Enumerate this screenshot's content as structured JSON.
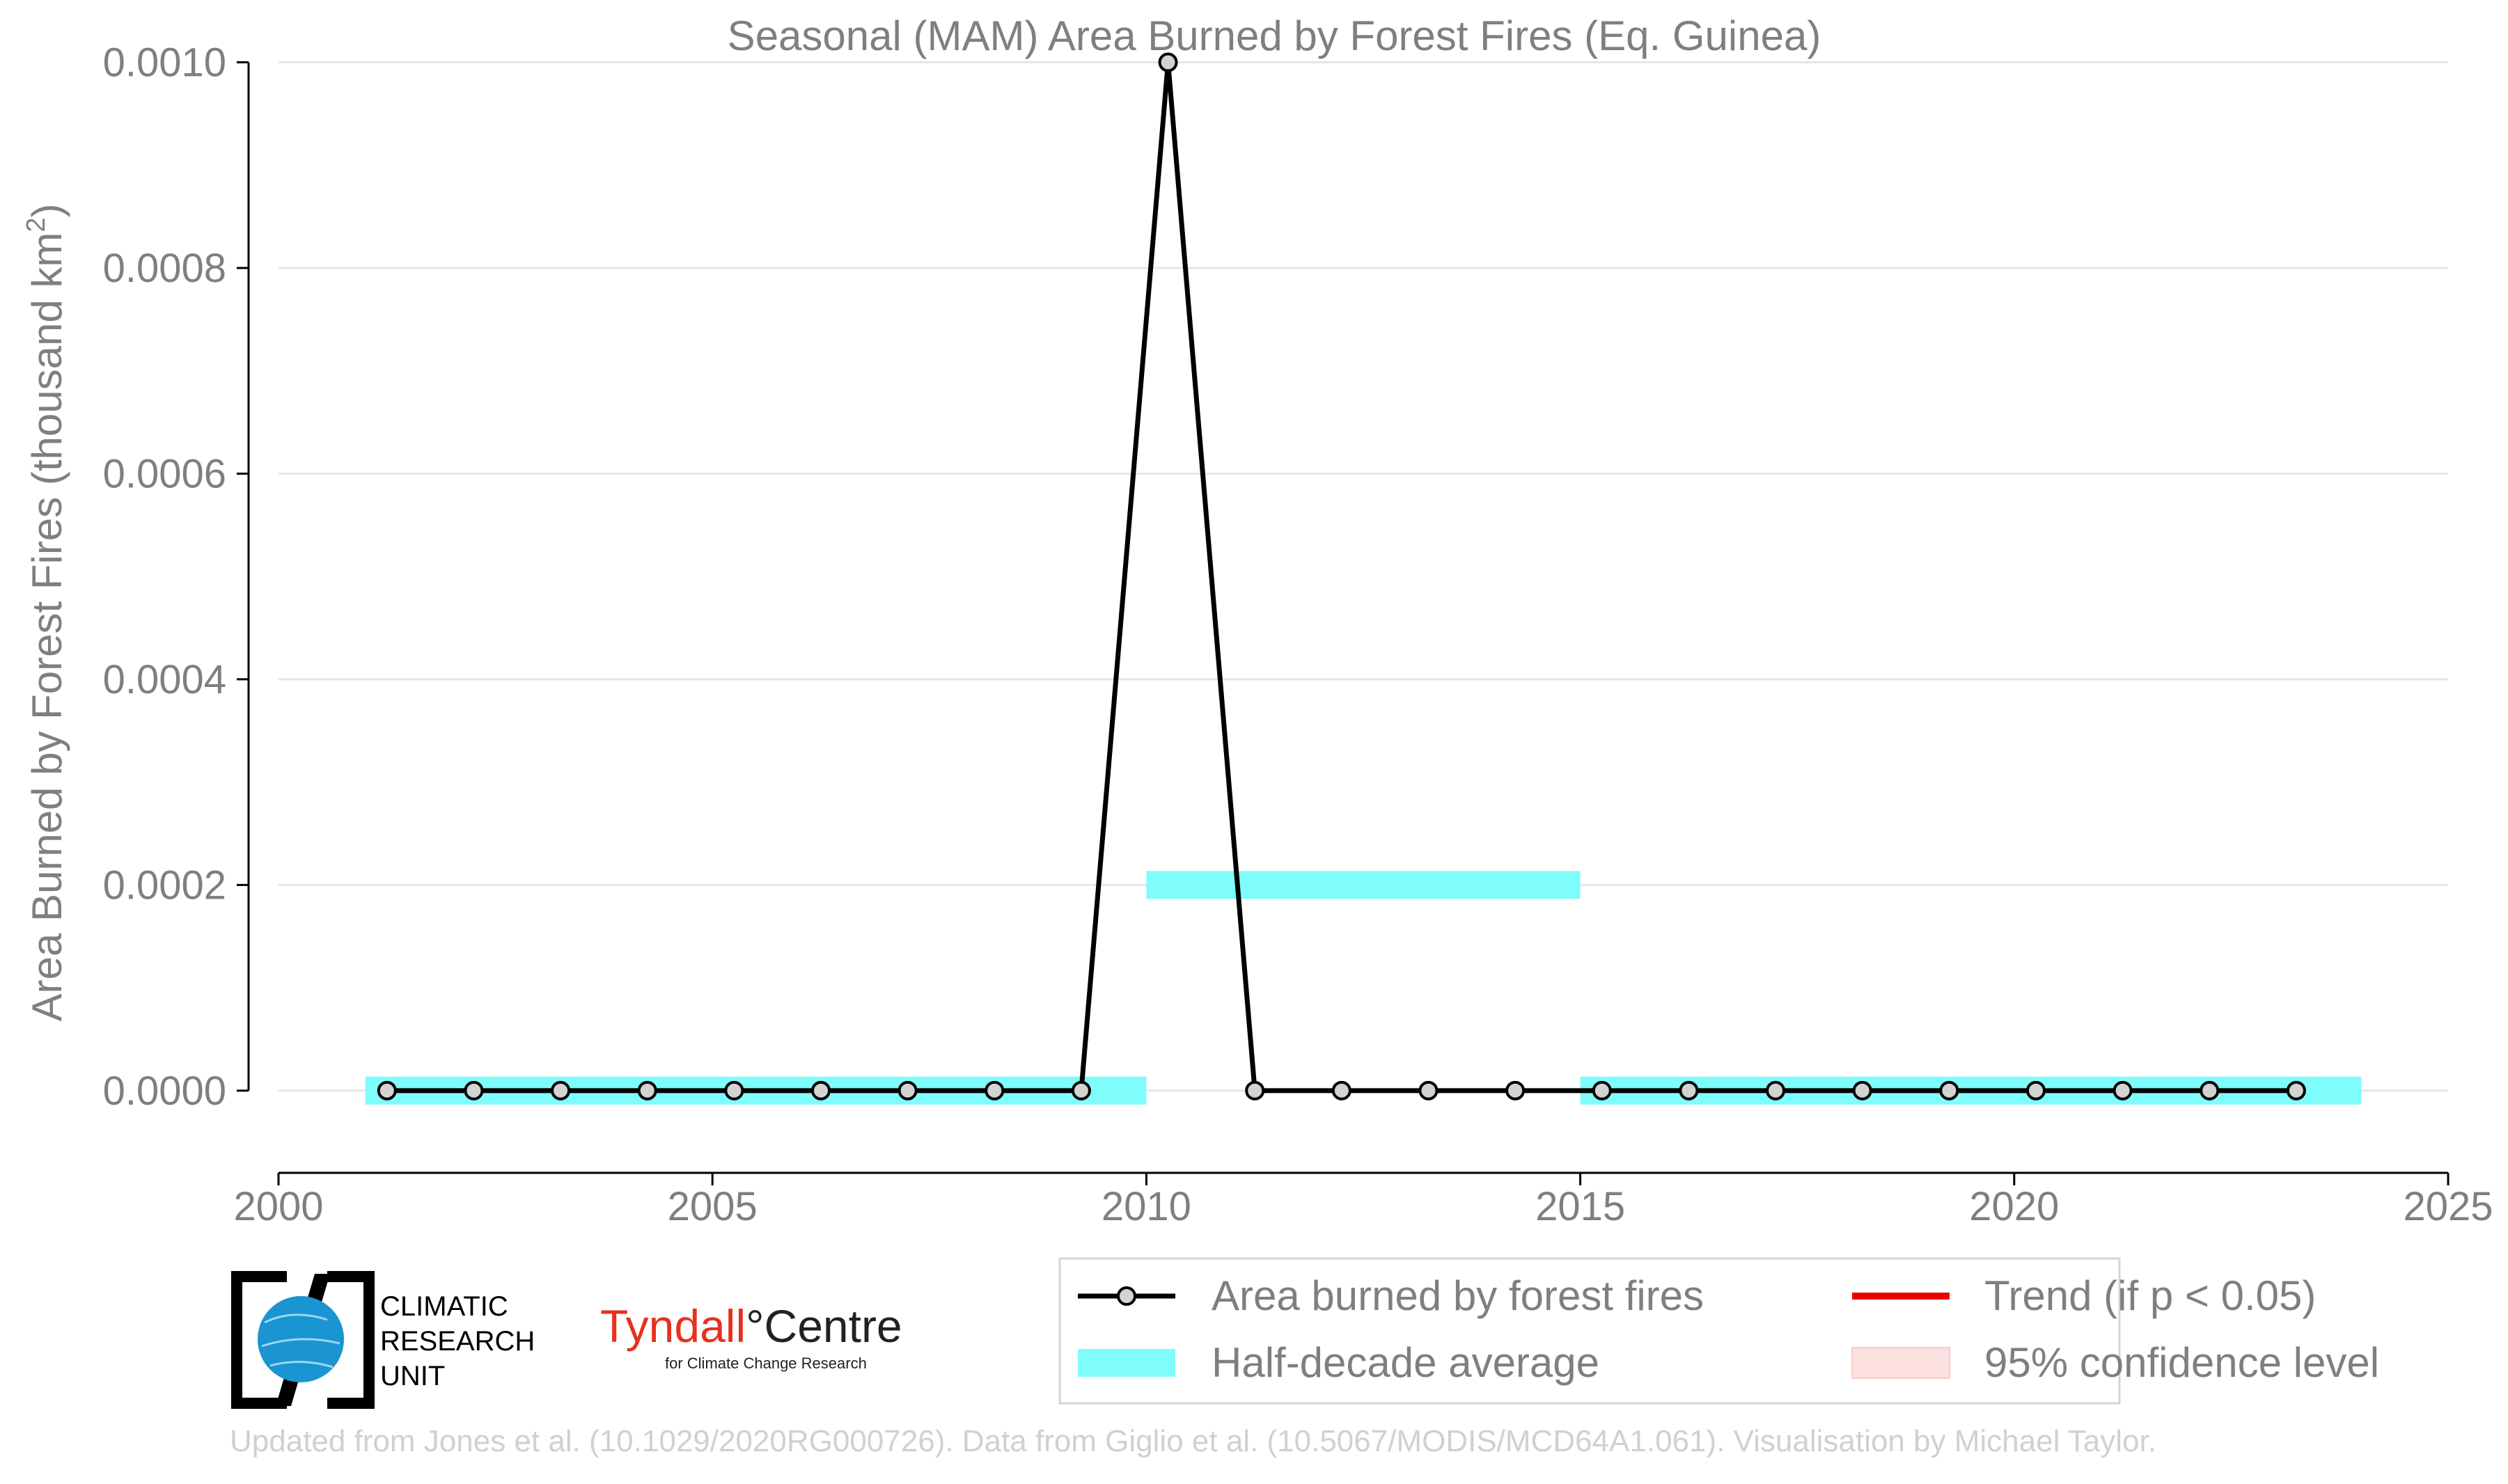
{
  "chart_data": {
    "type": "line",
    "title": "Seasonal (MAM) Area Burned by Forest Fires (Eq. Guinea)",
    "ylabel": "Area Burned by Forest Fires (thousand km",
    "ylabel_sup": "2",
    "ylabel_end": ")",
    "xlim": [
      2000,
      2025
    ],
    "ylim": [
      -8e-05,
      0.00102
    ],
    "x_ticks": [
      2000,
      2005,
      2010,
      2015,
      2020,
      2025
    ],
    "y_ticks": [
      "0.0000",
      "0.0002",
      "0.0004",
      "0.0006",
      "0.0008",
      "0.0010"
    ],
    "y_tick_values": [
      0,
      0.0002,
      0.0004,
      0.0006,
      0.0008,
      0.001
    ],
    "grid": "horizontal",
    "series": [
      {
        "name": "Area burned by forest fires",
        "color": "#000000",
        "x": [
          2001.25,
          2002.25,
          2003.25,
          2004.25,
          2005.25,
          2006.25,
          2007.25,
          2008.25,
          2009.25,
          2010.25,
          2011.25,
          2012.25,
          2013.25,
          2014.25,
          2015.25,
          2016.25,
          2017.25,
          2018.25,
          2019.25,
          2020.25,
          2021.25,
          2022.25,
          2023.25
        ],
        "y": [
          0,
          0,
          0,
          0,
          0,
          0,
          0,
          0,
          0,
          0.001,
          0,
          0,
          0,
          0,
          0,
          0,
          0,
          0,
          0,
          0,
          0,
          0,
          0
        ]
      }
    ],
    "half_decade_average": {
      "name": "Half-decade average",
      "color": "#7ffcfc",
      "segments": [
        {
          "x0": 2001,
          "x1": 2010,
          "y": 0
        },
        {
          "x0": 2010,
          "x1": 2015,
          "y": 0.0002
        },
        {
          "x0": 2015,
          "x1": 2024,
          "y": 0
        }
      ]
    },
    "legend": {
      "placement": "bottom-right",
      "entries": [
        {
          "label": "Area burned by forest fires",
          "kind": "line-marker",
          "color": "#000000"
        },
        {
          "label": "Trend (if p < 0.05)",
          "kind": "line",
          "color": "#ee0000"
        },
        {
          "label": "Half-decade average",
          "kind": "band",
          "color": "#7ffcfc"
        },
        {
          "label": "95% confidence level",
          "kind": "band",
          "color": "#fde0e0"
        }
      ]
    }
  },
  "logos": {
    "cru": {
      "line1": "CLIMATIC",
      "line2": "RESEARCH",
      "line3": "UNIT"
    },
    "tyndall": {
      "name_a": "Tyndall",
      "degree": "°",
      "name_b": "Centre",
      "subtitle": "for Climate Change Research",
      "color": "#e8301f"
    }
  },
  "footer": "Updated from Jones et al. (10.1029/2020RG000726). Data from Giglio et al. (10.5067/MODIS/MCD64A1.061). Visualisation by Michael Taylor."
}
